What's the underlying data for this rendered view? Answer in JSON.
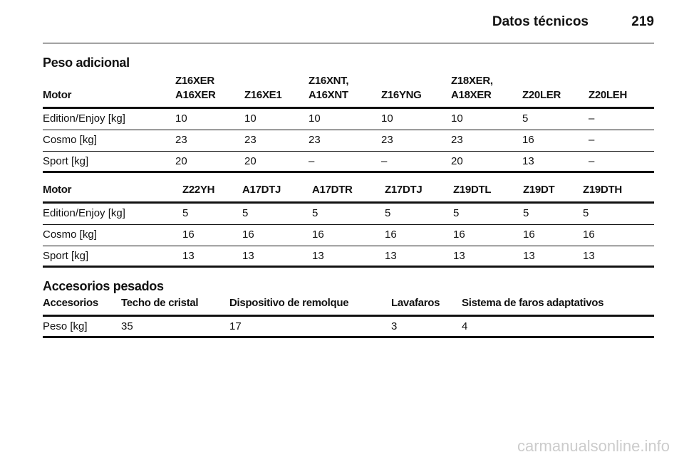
{
  "header": {
    "title": "Datos técnicos",
    "page": "219"
  },
  "sections": [
    {
      "title": "Peso adicional",
      "tables": [
        {
          "columns": [
            "Motor",
            "Z16XER\nA16XER",
            "Z16XE1",
            "Z16XNT,\nA16XNT",
            "Z16YNG",
            "Z18XER,\nA18XER",
            "Z20LER",
            "Z20LEH"
          ],
          "rows": [
            [
              "Edition/Enjoy [kg]",
              "10",
              "10",
              "10",
              "10",
              "10",
              "5",
              "–"
            ],
            [
              "Cosmo [kg]",
              "23",
              "23",
              "23",
              "23",
              "23",
              "16",
              "–"
            ],
            [
              "Sport [kg]",
              "20",
              "20",
              "–",
              "–",
              "20",
              "13",
              "–"
            ]
          ]
        },
        {
          "columns": [
            "Motor",
            "Z22YH",
            "A17DTJ",
            "A17DTR",
            "Z17DTJ",
            "Z19DTL",
            "Z19DT",
            "Z19DTH"
          ],
          "rows": [
            [
              "Edition/Enjoy [kg]",
              "5",
              "5",
              "5",
              "5",
              "5",
              "5",
              "5"
            ],
            [
              "Cosmo [kg]",
              "16",
              "16",
              "16",
              "16",
              "16",
              "16",
              "16"
            ],
            [
              "Sport [kg]",
              "13",
              "13",
              "13",
              "13",
              "13",
              "13",
              "13"
            ]
          ]
        }
      ]
    },
    {
      "title": "Accesorios pesados",
      "tables": [
        {
          "columns": [
            "Accesorios",
            "Techo de cristal",
            "Dispositivo de remolque",
            "Lavafaros",
            "Sistema de faros adaptativos"
          ],
          "rows": [
            [
              "Peso [kg]",
              "35",
              "17",
              "3",
              "4"
            ]
          ]
        }
      ]
    }
  ],
  "footer": {
    "watermark": "carmanualsonline.info"
  }
}
